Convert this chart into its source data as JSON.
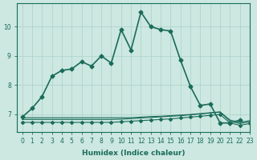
{
  "xlabel": "Humidex (Indice chaleur)",
  "background_color": "#cce8e0",
  "grid_color": "#b0d4cc",
  "line_color": "#1a6b5a",
  "xlim": [
    -0.5,
    23
  ],
  "ylim": [
    6.4,
    10.8
  ],
  "yticks": [
    7,
    8,
    9,
    10
  ],
  "xticks": [
    0,
    1,
    2,
    3,
    4,
    5,
    6,
    7,
    8,
    9,
    10,
    11,
    12,
    13,
    14,
    15,
    16,
    17,
    18,
    19,
    20,
    21,
    22,
    23
  ],
  "series_main": {
    "x": [
      0,
      1,
      2,
      3,
      4,
      5,
      6,
      7,
      8,
      9,
      10,
      11,
      12,
      13,
      14,
      15,
      16,
      17,
      18,
      19,
      20,
      21,
      22
    ],
    "y": [
      6.9,
      7.2,
      7.6,
      8.3,
      8.5,
      8.55,
      8.8,
      8.65,
      9.0,
      8.75,
      9.9,
      9.2,
      10.5,
      10.0,
      9.9,
      9.85,
      8.85,
      7.95,
      7.3,
      7.35,
      6.7,
      6.7,
      6.8
    ],
    "marker": "D",
    "markersize": 2.5,
    "linewidth": 1.2
  },
  "series_flat": [
    {
      "x": [
        0,
        1,
        2,
        3,
        4,
        5,
        6,
        7,
        8,
        9,
        10,
        11,
        12,
        13,
        14,
        15,
        16,
        17,
        18,
        19,
        20,
        21,
        22,
        23
      ],
      "y": [
        6.88,
        6.88,
        6.88,
        6.88,
        6.88,
        6.88,
        6.88,
        6.88,
        6.88,
        6.88,
        6.88,
        6.88,
        6.9,
        6.92,
        6.93,
        6.95,
        6.97,
        6.99,
        7.02,
        7.05,
        7.08,
        6.8,
        6.72,
        6.78
      ],
      "linewidth": 0.8
    },
    {
      "x": [
        0,
        1,
        2,
        3,
        4,
        5,
        6,
        7,
        8,
        9,
        10,
        11,
        12,
        13,
        14,
        15,
        16,
        17,
        18,
        19,
        20,
        21,
        22,
        23
      ],
      "y": [
        6.82,
        6.82,
        6.82,
        6.82,
        6.82,
        6.82,
        6.82,
        6.82,
        6.82,
        6.82,
        6.83,
        6.85,
        6.87,
        6.89,
        6.91,
        6.93,
        6.95,
        6.98,
        7.01,
        7.04,
        7.07,
        6.76,
        6.68,
        6.74
      ],
      "linewidth": 0.8
    },
    {
      "x": [
        0,
        1,
        2,
        3,
        4,
        5,
        6,
        7,
        8,
        9,
        10,
        11,
        12,
        13,
        14,
        15,
        16,
        17,
        18,
        19,
        20,
        21,
        22,
        23
      ],
      "y": [
        6.72,
        6.72,
        6.72,
        6.72,
        6.72,
        6.72,
        6.72,
        6.72,
        6.72,
        6.72,
        6.74,
        6.76,
        6.78,
        6.8,
        6.82,
        6.84,
        6.87,
        6.9,
        6.93,
        6.96,
        6.99,
        6.7,
        6.62,
        6.68
      ],
      "linewidth": 0.8,
      "marker": "D",
      "markersize": 2.0
    }
  ]
}
